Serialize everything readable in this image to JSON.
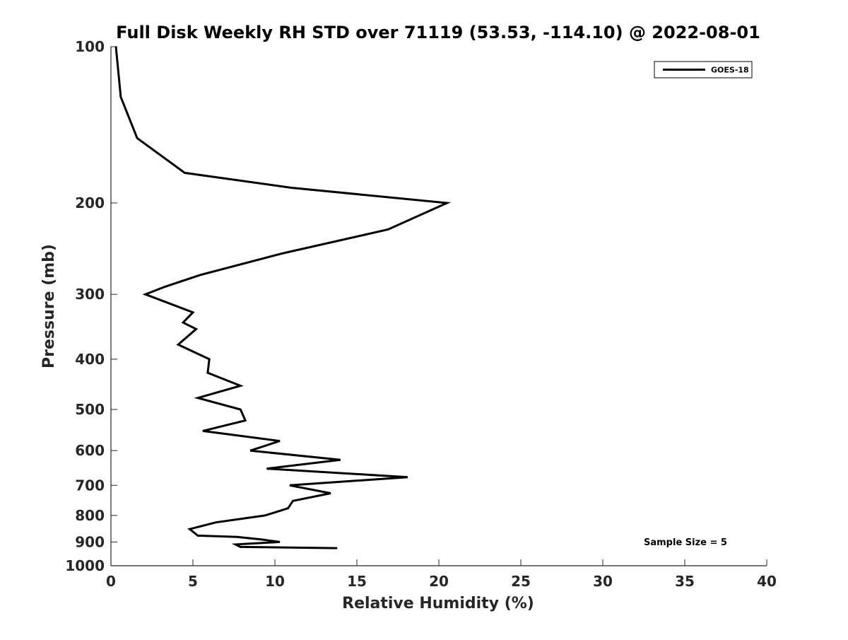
{
  "chart_data": {
    "type": "line",
    "title": "Full Disk Weekly RH STD over 71119 (53.53, -114.10) @ 2022-08-01",
    "xlabel": "Relative Humidity (%)",
    "ylabel": "Pressure (mb)",
    "xlim": [
      0,
      40
    ],
    "ylim": [
      100,
      1000
    ],
    "yscale": "log",
    "y_inverted": true,
    "grid": false,
    "xticks": [
      0,
      5,
      10,
      15,
      20,
      25,
      30,
      35,
      40
    ],
    "xtick_labels": [
      "0",
      "5",
      "10",
      "15",
      "20",
      "25",
      "30",
      "35",
      "40"
    ],
    "yticks": [
      100,
      200,
      300,
      400,
      500,
      600,
      700,
      800,
      900,
      1000
    ],
    "ytick_labels": [
      "100",
      "200",
      "300",
      "400",
      "500",
      "600",
      "700",
      "800",
      "900",
      "1000"
    ],
    "legend": {
      "position": "top-right",
      "entries": [
        "GOES-18"
      ]
    },
    "annotation": "Sample Size = 5",
    "series": [
      {
        "name": "GOES-18",
        "color": "#000000",
        "points": [
          [
            0.3,
            100
          ],
          [
            0.6,
            125
          ],
          [
            1.6,
            150
          ],
          [
            4.5,
            175
          ],
          [
            11.0,
            187
          ],
          [
            20.5,
            200
          ],
          [
            16.9,
            225
          ],
          [
            10.5,
            250
          ],
          [
            5.5,
            275
          ],
          [
            3.3,
            290
          ],
          [
            2.1,
            300
          ],
          [
            5.0,
            325
          ],
          [
            4.4,
            340
          ],
          [
            5.2,
            350
          ],
          [
            4.1,
            375
          ],
          [
            6.0,
            400
          ],
          [
            5.9,
            425
          ],
          [
            7.9,
            450
          ],
          [
            5.3,
            475
          ],
          [
            7.9,
            500
          ],
          [
            8.2,
            525
          ],
          [
            5.6,
            550
          ],
          [
            10.3,
            575
          ],
          [
            8.5,
            600
          ],
          [
            14.0,
            625
          ],
          [
            9.5,
            650
          ],
          [
            18.1,
            675
          ],
          [
            10.9,
            700
          ],
          [
            13.4,
            725
          ],
          [
            11.1,
            750
          ],
          [
            10.8,
            775
          ],
          [
            9.4,
            800
          ],
          [
            6.4,
            825
          ],
          [
            4.8,
            850
          ],
          [
            5.3,
            875
          ],
          [
            7.7,
            880
          ],
          [
            9.2,
            890
          ],
          [
            10.3,
            900
          ],
          [
            7.6,
            910
          ],
          [
            7.9,
            920
          ],
          [
            13.8,
            925
          ]
        ]
      }
    ]
  }
}
